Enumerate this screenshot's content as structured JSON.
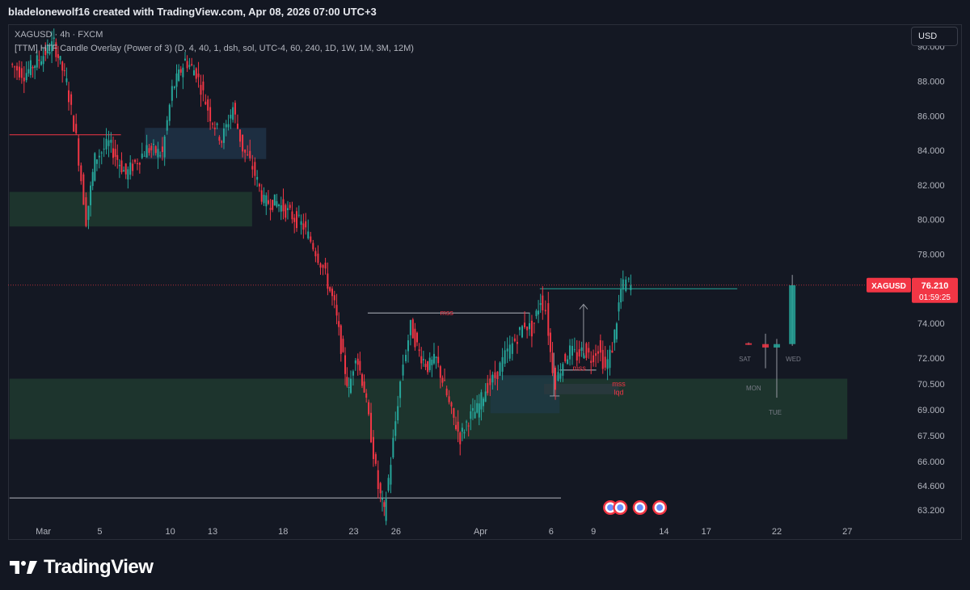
{
  "header": {
    "attribution": "bladelonewolf16 created with TradingView.com, Apr 08, 2026 07:00 UTC+3"
  },
  "legend": {
    "symbol": "XAGUSD · 4h · FXCM",
    "indicator": "[TTM] HTF Candle Overlay (Power of 3) (D, 4, 40, 1, dsh, sol, UTC-4, 60, 240, 1D, 1W, 1M, 3M, 12M)"
  },
  "toolbar": {
    "currency_label": "USD"
  },
  "price_tag": {
    "symbol": "XAGUSD",
    "price": "76.210",
    "countdown": "01:59:25",
    "color": "#f23645"
  },
  "brand": {
    "name": "TradingView"
  },
  "colors": {
    "up": "#26a69a",
    "down": "#f23645",
    "background": "#131722"
  },
  "chart_data": {
    "type": "candlestick",
    "symbol": "XAGUSD",
    "timeframe": "4h",
    "source": "FXCM",
    "y_ticks": [
      90.0,
      88.0,
      86.0,
      84.0,
      82.0,
      80.0,
      78.0,
      74.0,
      72.0,
      70.5,
      69.0,
      67.5,
      66.0,
      64.6,
      63.2
    ],
    "y_tick_labels": [
      "90.000",
      "88.000",
      "86.000",
      "84.000",
      "82.000",
      "80.000",
      "78.000",
      "74.000",
      "72.000",
      "70.500",
      "69.000",
      "67.500",
      "66.000",
      "64.600",
      "63.200"
    ],
    "ylim": [
      62.6,
      91.2
    ],
    "x_ticks": [
      {
        "label": "Mar",
        "x": 0
      },
      {
        "label": "5",
        "x": 4
      },
      {
        "label": "10",
        "x": 9
      },
      {
        "label": "13",
        "x": 12
      },
      {
        "label": "18",
        "x": 17
      },
      {
        "label": "23",
        "x": 22
      },
      {
        "label": "26",
        "x": 25
      },
      {
        "label": "Apr",
        "x": 31
      },
      {
        "label": "6",
        "x": 36
      },
      {
        "label": "9",
        "x": 39
      },
      {
        "label": "14",
        "x": 44
      },
      {
        "label": "17",
        "x": 47
      },
      {
        "label": "22",
        "x": 52
      },
      {
        "label": "27",
        "x": 57
      }
    ],
    "xlim": [
      -2.5,
      61.0
    ],
    "waypoints": [
      [
        -2.2,
        89.0
      ],
      [
        -1.2,
        88.4
      ],
      [
        0.0,
        89.4
      ],
      [
        0.9,
        90.2
      ],
      [
        1.8,
        87.9
      ],
      [
        2.5,
        84.7
      ],
      [
        3.2,
        80.0
      ],
      [
        3.8,
        83.5
      ],
      [
        4.8,
        84.4
      ],
      [
        6.0,
        82.6
      ],
      [
        7.5,
        84.1
      ],
      [
        8.6,
        83.8
      ],
      [
        9.3,
        87.5
      ],
      [
        10.2,
        89.2
      ],
      [
        11.0,
        88.5
      ],
      [
        12.0,
        86.0
      ],
      [
        12.8,
        84.6
      ],
      [
        13.6,
        86.5
      ],
      [
        14.3,
        84.1
      ],
      [
        15.0,
        83.0
      ],
      [
        15.8,
        81.0
      ],
      [
        16.7,
        81.0
      ],
      [
        17.8,
        80.2
      ],
      [
        18.6,
        79.6
      ],
      [
        19.3,
        78.5
      ],
      [
        20.0,
        77.2
      ],
      [
        20.8,
        75.0
      ],
      [
        21.4,
        71.9
      ],
      [
        21.8,
        70.0
      ],
      [
        22.3,
        72.3
      ],
      [
        22.9,
        70.2
      ],
      [
        23.4,
        67.5
      ],
      [
        23.9,
        64.5
      ],
      [
        24.3,
        63.0
      ],
      [
        24.8,
        66.0
      ],
      [
        25.3,
        69.5
      ],
      [
        25.7,
        71.7
      ],
      [
        26.2,
        73.8
      ],
      [
        26.8,
        72.3
      ],
      [
        27.4,
        71.5
      ],
      [
        28.0,
        71.9
      ],
      [
        28.6,
        70.3
      ],
      [
        29.1,
        68.8
      ],
      [
        29.7,
        67.4
      ],
      [
        30.3,
        68.5
      ],
      [
        30.9,
        69.0
      ],
      [
        31.5,
        70.2
      ],
      [
        32.2,
        70.9
      ],
      [
        32.9,
        72.1
      ],
      [
        33.6,
        73.0
      ],
      [
        34.3,
        74.0
      ],
      [
        34.8,
        73.6
      ],
      [
        35.4,
        75.4
      ],
      [
        35.8,
        74.8
      ],
      [
        36.1,
        72.3
      ],
      [
        36.5,
        70.6
      ],
      [
        37.0,
        71.8
      ],
      [
        37.5,
        72.4
      ],
      [
        38.0,
        72.1
      ],
      [
        38.5,
        72.5
      ],
      [
        39.0,
        72.0
      ],
      [
        39.5,
        72.6
      ],
      [
        40.0,
        71.4
      ],
      [
        40.5,
        72.6
      ],
      [
        41.1,
        75.9
      ],
      [
        41.5,
        76.4
      ],
      [
        41.8,
        76.21
      ]
    ],
    "current_price": 76.21,
    "zones": [
      {
        "type": "demand",
        "x0": -2.4,
        "x1": 14.8,
        "y0": 79.6,
        "y1": 81.6,
        "color": "#1e3a2f"
      },
      {
        "type": "supply",
        "x0": 7.2,
        "x1": 15.8,
        "y0": 83.5,
        "y1": 85.3,
        "color": "#1e3346"
      },
      {
        "type": "demand",
        "x0": -2.4,
        "x1": 57.0,
        "y0": 67.3,
        "y1": 70.8,
        "color": "#1e3a2f"
      },
      {
        "type": "ob",
        "x0": 31.7,
        "x1": 36.6,
        "y0": 68.8,
        "y1": 71.0,
        "color": "#1f3a44"
      },
      {
        "type": "fvg",
        "x0": 35.5,
        "x1": 40.8,
        "y0": 69.9,
        "y1": 70.5,
        "color": "#2a3a40"
      }
    ],
    "level_lines": [
      {
        "x0": -2.4,
        "x1": 5.5,
        "y": 84.9,
        "color": "#f23645"
      },
      {
        "x0": 23.0,
        "x1": 34.5,
        "y": 74.6,
        "color": "#b2b5be"
      },
      {
        "x0": -2.4,
        "x1": 36.7,
        "y": 63.9,
        "color": "#b2b5be"
      },
      {
        "x0": 35.2,
        "x1": 49.2,
        "y": 76.0,
        "color": "#26a69a"
      },
      {
        "x0": 36.6,
        "x1": 39.2,
        "y": 71.3,
        "color": "#b2b5be"
      }
    ],
    "mss_labels": [
      {
        "text": "mss",
        "x": 28.6,
        "y": 74.6
      },
      {
        "text": "mss",
        "x": 38.0,
        "y": 71.4
      },
      {
        "text": "mss",
        "x": 40.8,
        "y": 70.5
      },
      {
        "text": "lqd",
        "x": 40.8,
        "y": 70.0
      }
    ],
    "htf_candles": [
      {
        "label": "SAT",
        "x": 50.0,
        "open": 72.8,
        "close": 72.85,
        "high": 72.9,
        "low": 72.75,
        "color": "#f23645"
      },
      {
        "label": "MON",
        "x": 51.2,
        "open": 72.8,
        "close": 72.6,
        "high": 73.4,
        "low": 71.4,
        "color": "#f23645"
      },
      {
        "label": "TUE",
        "x": 52.0,
        "open": 72.6,
        "close": 72.8,
        "high": 73.1,
        "low": 69.7,
        "color": "#26a69a"
      },
      {
        "label": "WED",
        "x": 53.1,
        "open": 72.8,
        "close": 76.2,
        "high": 76.8,
        "low": 72.7,
        "color": "#26a69a"
      }
    ],
    "event_icons": [
      40.2,
      40.9,
      42.3,
      43.7
    ]
  }
}
